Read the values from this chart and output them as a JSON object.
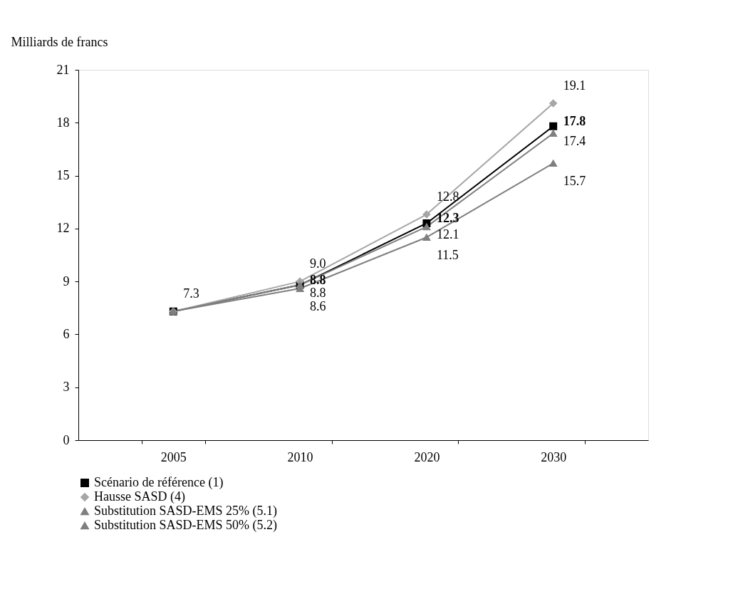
{
  "chart_data": {
    "type": "line",
    "ylabel": "Milliards de francs",
    "categories": [
      "2005",
      "2010",
      "2020",
      "2030"
    ],
    "series": [
      {
        "name": "Scénario de référence (1)",
        "color": "#000000",
        "marker": "square",
        "values": [
          7.3,
          8.8,
          12.3,
          17.8
        ],
        "value_labels": [
          null,
          "8.8",
          "12.3",
          "17.8"
        ]
      },
      {
        "name": "Hausse SASD (4)",
        "color": "#a6a6a6",
        "marker": "diamond",
        "values": [
          7.3,
          9.0,
          12.8,
          19.1
        ],
        "value_labels": [
          "7.3",
          "9.0",
          "12.8",
          "19.1"
        ]
      },
      {
        "name": "Substitution SASD-EMS 25% (5.1)",
        "color": "#808080",
        "marker": "triangle",
        "values": [
          7.3,
          8.8,
          12.1,
          17.4
        ],
        "value_labels": [
          null,
          "8.8",
          "12.1",
          "17.4"
        ]
      },
      {
        "name": "Substitution SASD-EMS 50% (5.2)",
        "color": "#7f7f7f",
        "marker": "triangle",
        "values": [
          7.3,
          8.6,
          11.5,
          15.7
        ],
        "value_labels": [
          null,
          "8.6",
          "11.5",
          "15.7"
        ]
      }
    ],
    "ylim": [
      0,
      21
    ],
    "yticks": [
      0,
      3,
      6,
      9,
      12,
      15,
      18,
      21
    ],
    "grid": false,
    "legend": "bottom",
    "line_style": "solid"
  }
}
